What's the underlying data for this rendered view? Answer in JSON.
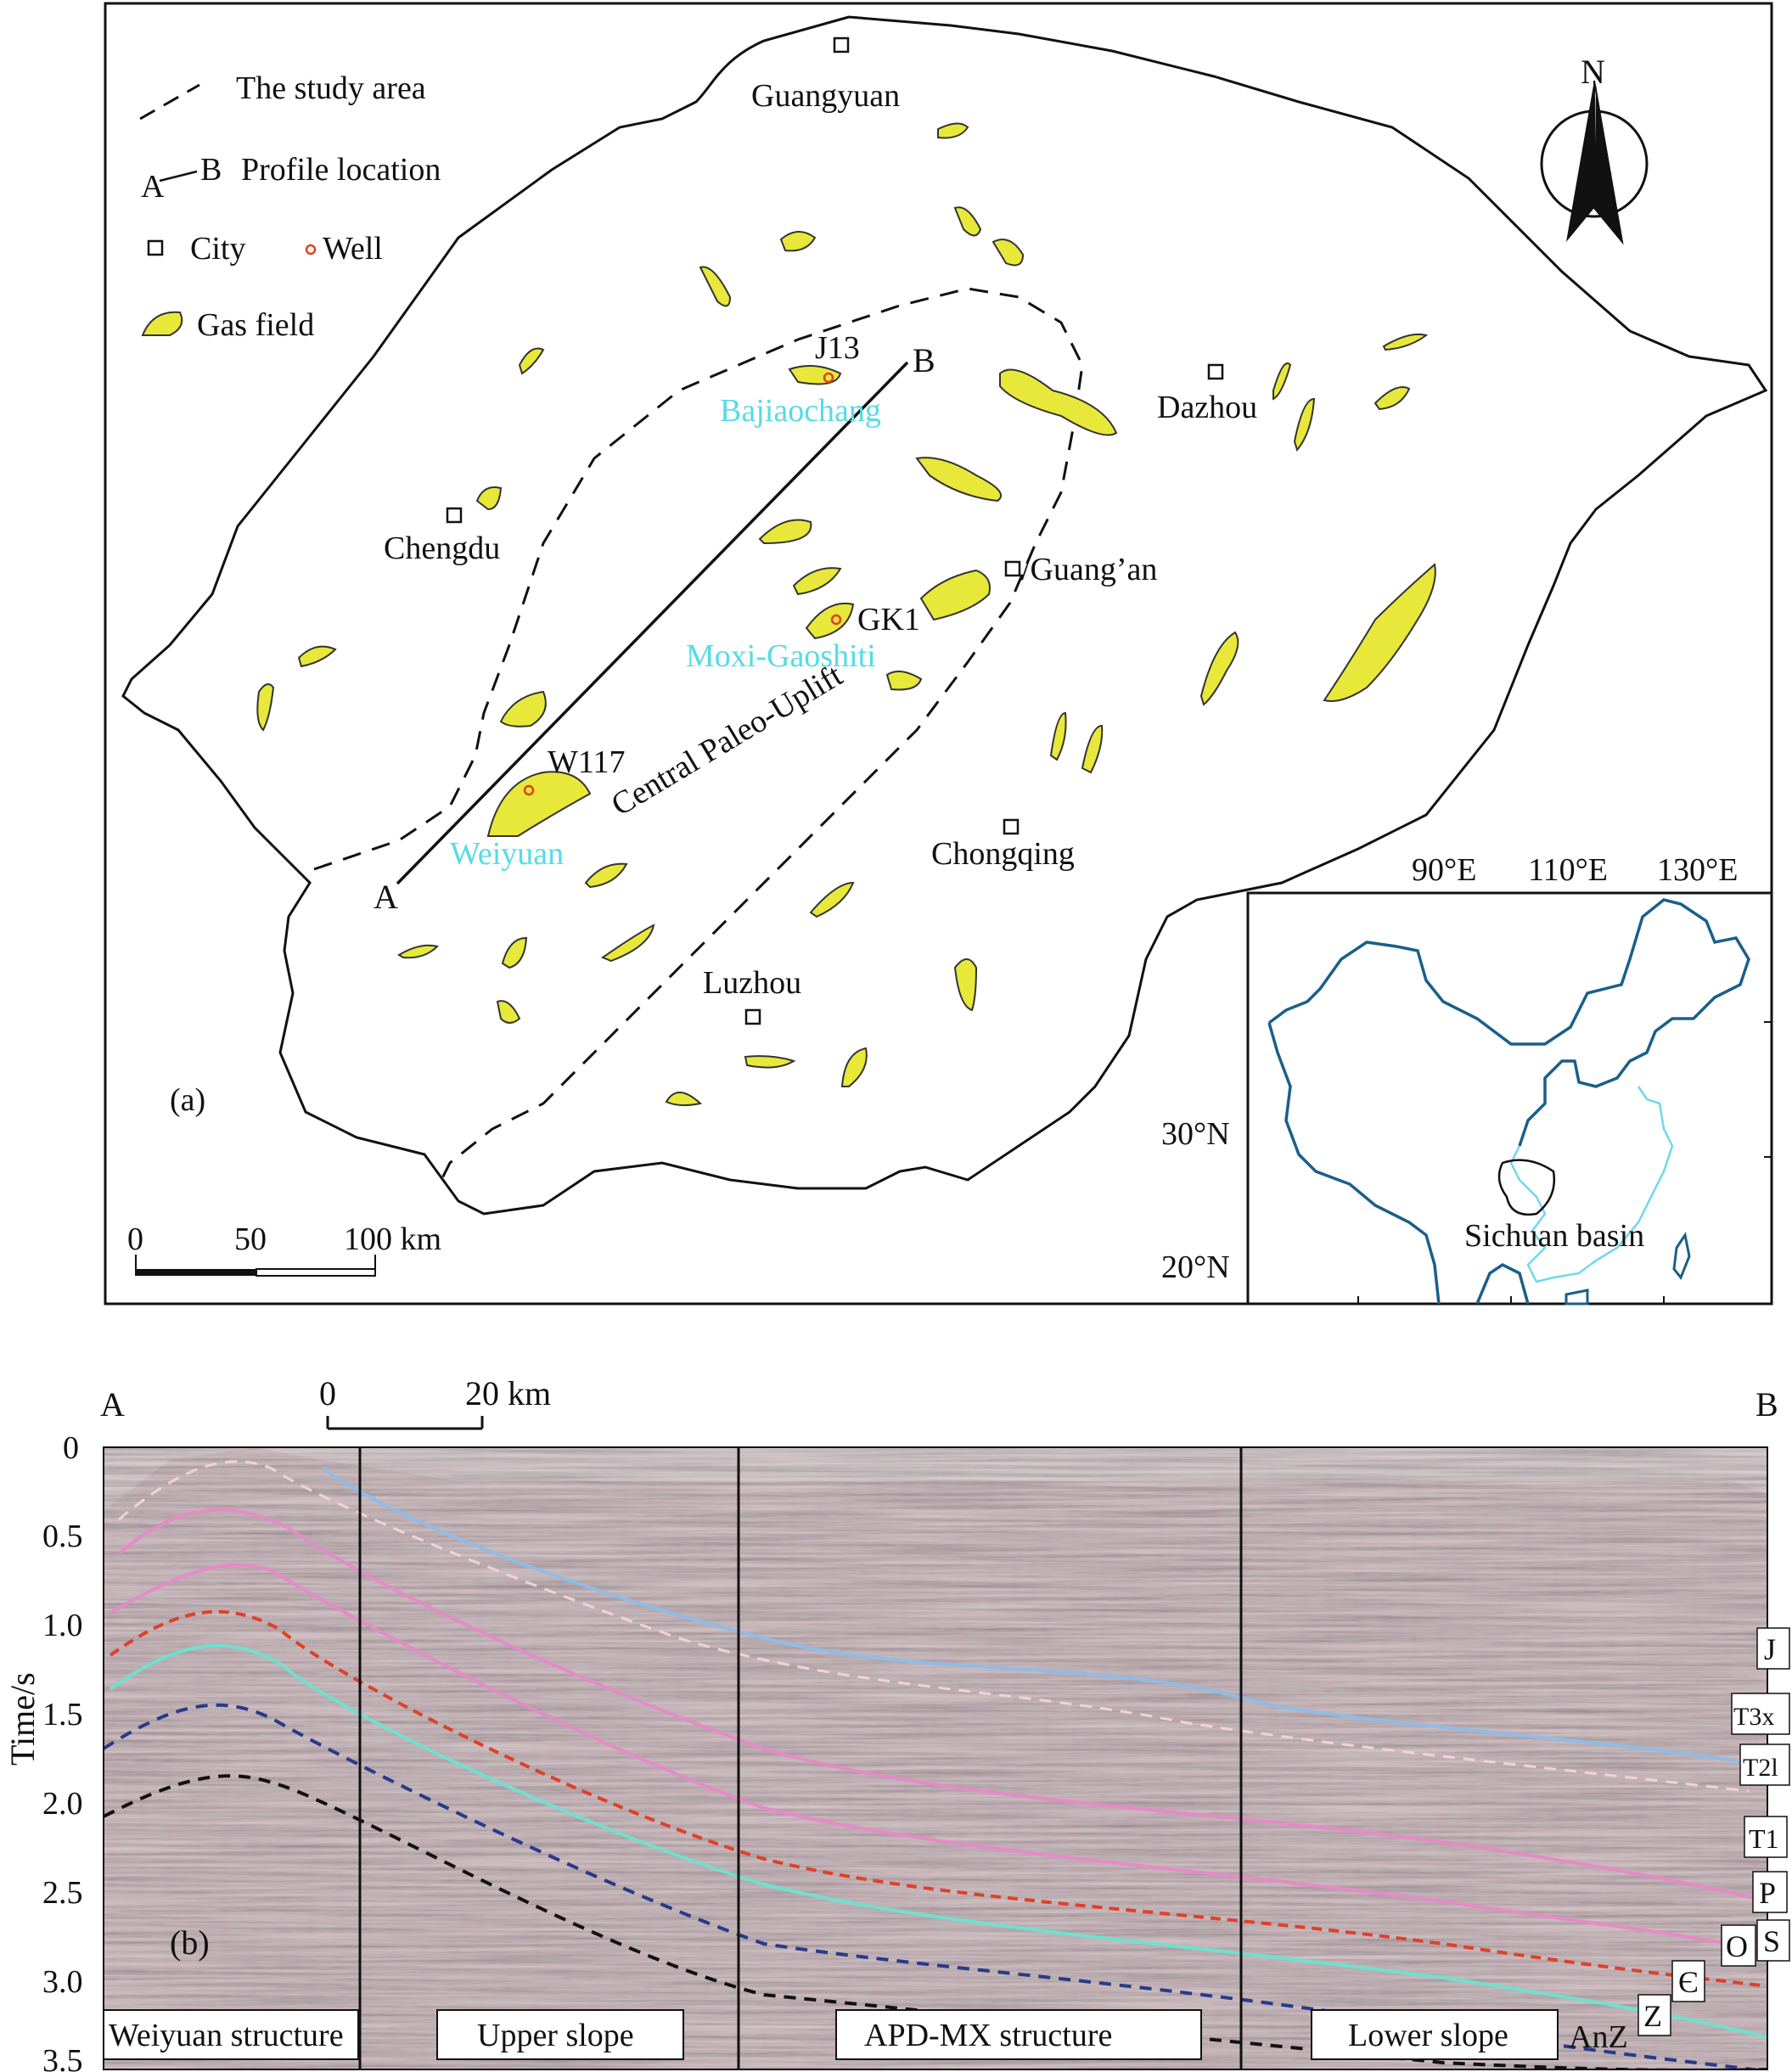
{
  "map": {
    "panel_label": "(a)",
    "legend": {
      "study_area": "The study area",
      "profile_location": "Profile location",
      "profile_a": "A",
      "profile_b": "B",
      "city": "City",
      "well": "Well",
      "gas_field": "Gas field"
    },
    "north": "N",
    "cities": [
      "Guangyuan",
      "Dazhou",
      "Chengdu",
      "/Guang’an",
      "Chongqing",
      "Luzhou"
    ],
    "wells": [
      "J13",
      "GK1",
      "W117"
    ],
    "fields": [
      "Bajiaochang",
      "Moxi-Gaoshiti",
      "Weiyuan"
    ],
    "uplift": "Central Paleo-Uplift",
    "line_a": "A",
    "line_b": "B",
    "scale": {
      "t0": "0",
      "t50": "50",
      "t100": "100 km"
    },
    "inset": {
      "lon": [
        "90°E",
        "110°E",
        "130°E"
      ],
      "lat": [
        "30°N",
        "20°N"
      ],
      "basin": "Sichuan basin"
    }
  },
  "profile": {
    "panel_label": "(b)",
    "end_a": "A",
    "end_b": "B",
    "scale": {
      "t0": "0",
      "t20": "20 km"
    },
    "y_axis_label": "Time/s",
    "y_ticks": [
      "0",
      "0.5",
      "1.0",
      "1.5",
      "2.0",
      "2.5",
      "3.0",
      "3.5"
    ],
    "sections": [
      "Weiyuan structure",
      "Upper slope",
      "APD-MX structure",
      "Lower slope"
    ],
    "horizons": [
      "J",
      "T3x",
      "T2l",
      "T1",
      "P",
      "S",
      "O",
      "Є",
      "Z",
      "AnZ"
    ],
    "colors": {
      "gas": "#e8e83a",
      "blue_horizon": "#8fbce6",
      "pink_horizon": "#e58ac8",
      "red_horizon": "#e0402a",
      "cyan_horizon": "#6fe0d0",
      "navy_horizon": "#283a8a",
      "sea": "#1a5f8a",
      "coast": "#6fd8ec"
    }
  }
}
